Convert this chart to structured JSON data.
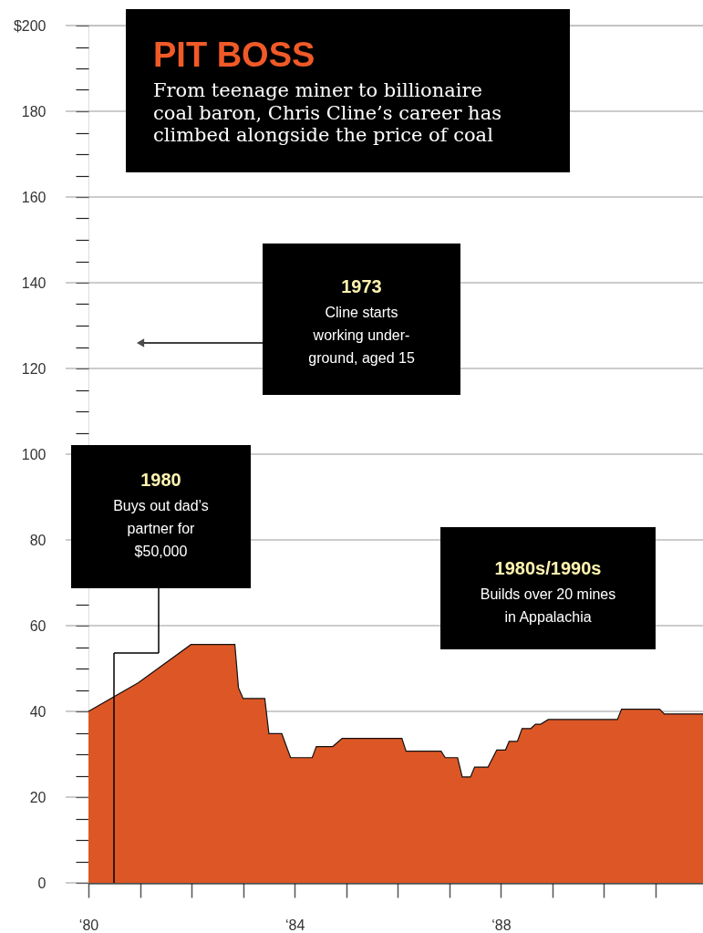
{
  "chart_data": {
    "type": "area",
    "title": "PIT BOSS",
    "subtitle": "From teenage miner to billionaire\ncoal baron, Chris Cline’s career has\nclimbed alongside the price of coal",
    "annotations": [
      "1973\nCline starts\nworking under-\nground, aged 15",
      "1980\nBuys out dad’s\npartner for\n$50,000",
      "1980s/1990s\nBuilds over 20 mines\nin Appalachia"
    ],
    "x": [
      80,
      80.97,
      81.99,
      82.84,
      82.91,
      83.0,
      83.42,
      83.5,
      83.75,
      83.92,
      84.34,
      84.42,
      84.74,
      84.92,
      86.08,
      86.16,
      86.84,
      86.92,
      87.16,
      87.25,
      87.41,
      87.49,
      87.75,
      87.92,
      88.09,
      88.16,
      88.32,
      88.41,
      88.58,
      88.67,
      88.77,
      88.92,
      90.26,
      90.34,
      91.08,
      91.17,
      91.92
    ],
    "values": [
      40,
      46.7,
      55.6,
      55.6,
      45.5,
      43,
      43,
      34.8,
      34.8,
      29.2,
      29.2,
      31.8,
      31.8,
      33.7,
      33.7,
      30.7,
      30.7,
      29.2,
      29.2,
      24.7,
      24.7,
      27,
      27,
      31,
      31,
      33,
      33,
      36,
      36,
      37,
      37,
      38.1,
      38.1,
      40.5,
      40.5,
      39.4,
      39.4
    ],
    "color": "#dd5726",
    "xlim": [
      80,
      91.92
    ],
    "xticks": [
      {
        "value": 80,
        "label": "‘80"
      },
      {
        "value": 81,
        "label": null
      },
      {
        "value": 82,
        "label": null
      },
      {
        "value": 83,
        "label": null
      },
      {
        "value": 84,
        "label": "‘84"
      },
      {
        "value": 85,
        "label": null
      },
      {
        "value": 86,
        "label": null
      },
      {
        "value": 87,
        "label": null
      },
      {
        "value": 88,
        "label": "‘88"
      },
      {
        "value": 89,
        "label": null
      },
      {
        "value": 90,
        "label": null
      },
      {
        "value": 91,
        "label": null
      }
    ],
    "ylim": [
      0,
      200
    ],
    "yticks": [
      0,
      {
        "value": 5,
        "label": null
      },
      {
        "value": 10,
        "label": null
      },
      {
        "value": 15,
        "label": null
      },
      20,
      {
        "value": 25,
        "label": null
      },
      {
        "value": 30,
        "label": null
      },
      {
        "value": 35,
        "label": null
      },
      40,
      {
        "value": 45,
        "label": null
      },
      {
        "value": 50,
        "label": null
      },
      {
        "value": 55,
        "label": null
      },
      60,
      {
        "value": 65,
        "label": null
      },
      {
        "value": 70,
        "label": null
      },
      {
        "value": 75,
        "label": null
      },
      80,
      {
        "value": 85,
        "label": null
      },
      {
        "value": 90,
        "label": null
      },
      {
        "value": 95,
        "label": null
      },
      100,
      {
        "value": 105,
        "label": null
      },
      {
        "value": 110,
        "label": null
      },
      {
        "value": 115,
        "label": null
      },
      120,
      {
        "value": 125,
        "label": null
      },
      {
        "value": 130,
        "label": null
      },
      {
        "value": 135,
        "label": null
      },
      140,
      {
        "value": 145,
        "label": null
      },
      {
        "value": 150,
        "label": null
      },
      {
        "value": 155,
        "label": null
      },
      160,
      {
        "value": 165,
        "label": null
      },
      {
        "value": 170,
        "label": null
      },
      {
        "value": 175,
        "label": null
      },
      180,
      {
        "value": 185,
        "label": null
      },
      {
        "value": 190,
        "label": null
      },
      {
        "value": 195,
        "label": null
      },
      {
        "value": 200,
        "label": "$200"
      }
    ],
    "grid": "y"
  }
}
